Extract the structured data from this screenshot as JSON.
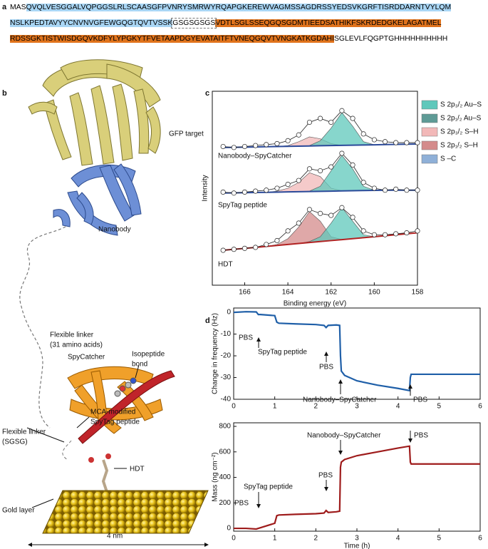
{
  "panel_labels": [
    "a",
    "b",
    "c",
    "d"
  ],
  "sequence": {
    "lines": [
      [
        {
          "text": "MAS"
        },
        {
          "text": "QVQLVESGGALVQPGGSLRLSCAASGFPVNRYSMRWYRQAPGKEREWVAGMSSAGDRSSYEDSVKGRFTISRDDARNTVYLQM",
          "color": "#a9d6f5"
        }
      ],
      [
        {
          "text": "NSLKPEDTAVYYCNVNVGFEWGQGTQVTVSSK",
          "color": "#a9d6f5"
        },
        {
          "text": "GSGSGSGS"
        },
        {
          "text": "VDTLSGLSSEQGQSGDMTIEEDSATHIKFSKRDEDGKELAGATMEL",
          "color": "#e0731c"
        }
      ],
      [
        {
          "text": "RDSSGKTISTWISDGQVKDFYLYPGKYTFVETAAPDGYEVATAITFTVNEQGQVTVNGKATKGDAHI",
          "color": "#e0731c"
        },
        {
          "text": "SGLEVLFQGPTGHHHHHHHHHH"
        }
      ]
    ]
  },
  "illustration": {
    "labels": [
      "GFP target",
      "Nanobody",
      [
        "Flexible linker",
        "(31 amino acids)"
      ],
      "SpyCatcher",
      [
        "Isopeptide",
        "bond"
      ],
      [
        "MCA-modified",
        "SpyTag peptide"
      ],
      [
        "Flexible linker",
        "(SGSG)"
      ],
      "HDT",
      "Gold layer",
      "4 nm"
    ]
  },
  "chart_data": [
    {
      "type": "spectrum",
      "xlabel": "Binding energy (eV)",
      "ylabel": "Intensity",
      "xlim": [
        167.5,
        158
      ],
      "xticks": [
        166,
        164,
        162,
        160,
        158
      ],
      "ylim": [
        0,
        100
      ],
      "x": [
        167,
        166.5,
        166,
        165.5,
        165,
        164.5,
        164,
        163.5,
        163,
        162.5,
        162,
        161.5,
        161,
        160.5,
        160,
        159.5,
        159,
        158.5,
        158
      ],
      "legend": [
        {
          "name": "S 2p₃/₂ Au–S",
          "color": "#5fc8bb"
        },
        {
          "name": "S 2p₁/₂ Au–S",
          "color": "#5e9b96"
        },
        {
          "name": "S 2p₃/₂ S–H",
          "color": "#f2b8b8"
        },
        {
          "name": "S 2p₁/₂ S–H",
          "color": "#d48b8b"
        },
        {
          "name": "S –C",
          "color": "#8fb0d8"
        }
      ],
      "spectra": [
        {
          "label": "Nanobody–SpyCatcher",
          "color": "#2b4a9a",
          "baseline": [
            71,
            71.1,
            71.2,
            71.3,
            71.4,
            71.5,
            71.6,
            71.7,
            71.8,
            71.9,
            72,
            72.1,
            72.2,
            72.3,
            72.4,
            72.5,
            72.6,
            72.7,
            72.8
          ],
          "components": [
            {
              "color": "#f2b8b8",
              "values": [
                71,
                71.1,
                71.2,
                71.3,
                71.4,
                71.5,
                72,
                74,
                76.5,
                75.5,
                73,
                72.1,
                72.2,
                72.3,
                72.4,
                72.5,
                72.6,
                72.7,
                72.8
              ]
            },
            {
              "color": "#5fc8bb",
              "values": [
                71,
                71.1,
                71.2,
                71.3,
                71.4,
                71.5,
                71.6,
                71.7,
                72,
                74.5,
                81,
                89,
                82,
                74,
                72.4,
                72.5,
                72.6,
                72.7,
                72.8
              ]
            }
          ],
          "data": [
            71.5,
            71,
            71.5,
            72,
            72.5,
            73,
            74.5,
            77.5,
            84,
            86,
            84,
            90,
            86,
            78,
            75,
            74,
            73.5,
            73.5,
            73.5
          ]
        },
        {
          "label": "SpyTag peptide",
          "color": "#2b4a9a",
          "baseline": [
            47.5,
            47.6,
            47.7,
            47.8,
            47.9,
            48,
            48.1,
            48.2,
            48.3,
            48.4,
            48.5,
            48.6,
            48.7,
            48.8,
            48.9,
            49,
            49,
            49,
            49
          ],
          "components": [
            {
              "color": "#f2b8b8",
              "values": [
                47.5,
                47.6,
                47.7,
                47.8,
                47.9,
                48.5,
                50,
                53,
                58,
                56,
                50,
                48.7,
                48.7,
                48.8,
                48.9,
                49,
                49,
                49,
                49
              ]
            },
            {
              "color": "#5fc8bb",
              "values": [
                47.5,
                47.6,
                47.7,
                47.8,
                47.9,
                48,
                48.1,
                48.2,
                48.5,
                51,
                59,
                67,
                60,
                51,
                49,
                49,
                49,
                49,
                49
              ]
            }
          ],
          "data": [
            48,
            47.5,
            48,
            48.5,
            49,
            50,
            52,
            54,
            60,
            59,
            61,
            68,
            62,
            53,
            50,
            49,
            49.5,
            49,
            49
          ]
        },
        {
          "label": "HDT",
          "color": "#b22222",
          "baseline": [
            18,
            18.5,
            19,
            19.5,
            20,
            20.5,
            21,
            21.5,
            22,
            22.5,
            23,
            23.5,
            24,
            24.5,
            25,
            25.5,
            26,
            26.5,
            27
          ],
          "components": [
            {
              "color": "#d48b8b",
              "values": [
                18,
                18.5,
                19,
                19.5,
                20,
                21,
                24,
                30,
                38,
                33,
                25,
                23.5,
                24,
                24.5,
                25,
                25.5,
                26,
                26.5,
                27
              ]
            },
            {
              "color": "#5fc8bb",
              "values": [
                18,
                18.5,
                19,
                19.5,
                20,
                20.5,
                21,
                21.5,
                22.5,
                25,
                32,
                40,
                33,
                26,
                25,
                25.5,
                26,
                26.5,
                27
              ]
            }
          ],
          "data": [
            18,
            18.5,
            19,
            19.5,
            21,
            23,
            28,
            32,
            39,
            37,
            36,
            40,
            35,
            28,
            26,
            26,
            26.5,
            27,
            28
          ]
        }
      ]
    },
    {
      "type": "line",
      "ylabel": "Change in frequency (Hz)",
      "xlim": [
        0,
        6
      ],
      "xticks": [
        0,
        1,
        2,
        3,
        4,
        5,
        6
      ],
      "ylim": [
        -40,
        2
      ],
      "yticks": [
        -40,
        -30,
        -20,
        -10,
        0
      ],
      "x": [
        0,
        0.3,
        0.55,
        0.6,
        0.65,
        1.0,
        1.05,
        1.1,
        1.5,
        2.0,
        2.2,
        2.25,
        2.3,
        2.5,
        2.58,
        2.6,
        2.62,
        2.7,
        3.0,
        3.5,
        4.0,
        4.28,
        4.3,
        4.32,
        5.0,
        6.0
      ],
      "series": [
        {
          "color": "#1f5fa8",
          "values": [
            0,
            0.3,
            0.2,
            -1,
            -1,
            -1.5,
            -4.5,
            -5,
            -5.3,
            -5.6,
            -6,
            -7,
            -6,
            -5.8,
            -6,
            -20,
            -27,
            -29,
            -31.5,
            -33.5,
            -35,
            -36,
            -30,
            -28.5,
            -28.5,
            -28.5
          ]
        }
      ],
      "annotations": [
        "PBS",
        "SpyTag peptide",
        "PBS",
        "Nanobody–SpyCatcher",
        "PBS"
      ]
    },
    {
      "type": "line",
      "ylabel": "Mass (ng cm⁻²)",
      "xlabel": "Time (h)",
      "xlim": [
        0,
        6
      ],
      "xticks": [
        0,
        1,
        2,
        3,
        4,
        5,
        6
      ],
      "ylim": [
        -22,
        828
      ],
      "yticks": [
        0,
        200,
        400,
        600,
        800
      ],
      "x": [
        0,
        0.3,
        0.55,
        0.6,
        0.65,
        1.0,
        1.05,
        1.1,
        1.5,
        2.0,
        2.2,
        2.25,
        2.3,
        2.5,
        2.58,
        2.6,
        2.62,
        2.7,
        3.0,
        3.5,
        4.0,
        4.28,
        4.3,
        4.32,
        5.0,
        6.0
      ],
      "series": [
        {
          "color": "#9e1b1b",
          "values": [
            0,
            0,
            -5,
            0,
            5,
            40,
            100,
            105,
            110,
            115,
            120,
            140,
            125,
            130,
            135,
            480,
            520,
            540,
            570,
            600,
            630,
            645,
            520,
            505,
            505,
            505
          ]
        }
      ],
      "annotations": [
        "PBS",
        "SpyTag peptide",
        "PBS",
        "Nanobody–SpyCatcher",
        "PBS"
      ]
    }
  ]
}
